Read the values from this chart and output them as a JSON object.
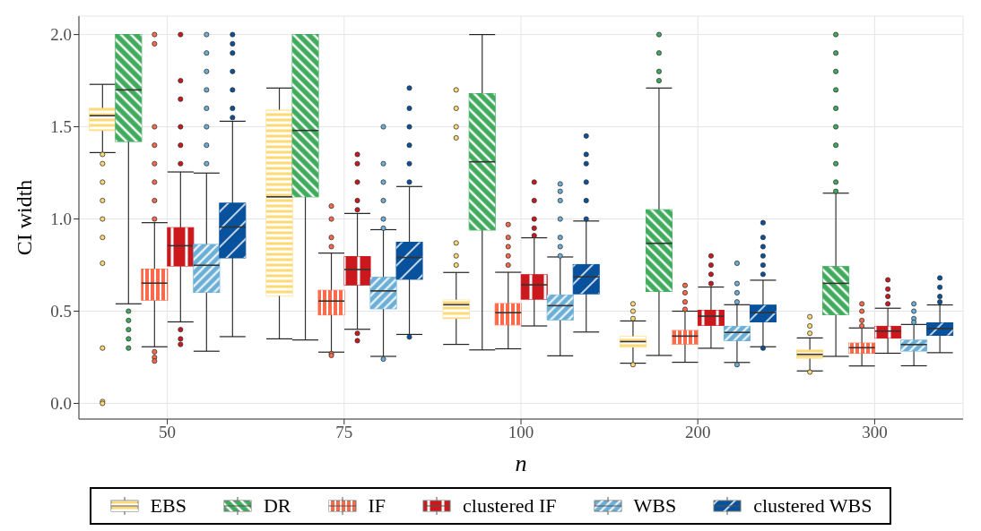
{
  "chart_data": {
    "type": "box",
    "xlabel": "n",
    "ylabel": "CI width",
    "categories": [
      "50",
      "75",
      "100",
      "200",
      "300"
    ],
    "ylim": [
      -0.085,
      2.1
    ],
    "yticks": [
      {
        "value": 0,
        "label": "0.0"
      },
      {
        "value": 0.5,
        "label": "0.5"
      },
      {
        "value": 1,
        "label": "1.0"
      },
      {
        "value": 1.5,
        "label": "1.5"
      },
      {
        "value": 2,
        "label": "2.0"
      }
    ],
    "grid": true,
    "legend": "bottom",
    "series": [
      {
        "name": "EBS",
        "color": "#fed976",
        "boxes": [
          {
            "low": 1.36,
            "q1": 1.48,
            "median": 1.56,
            "q3": 1.6,
            "high": 1.73,
            "outliers": [
              1.35,
              1.3,
              1.2,
              1.1,
              1.0,
              0.9,
              0.76,
              0.3,
              0.01,
              0.0
            ]
          },
          {
            "low": 0.35,
            "q1": 0.585,
            "median": 1.12,
            "q3": 1.59,
            "high": 1.71
          },
          {
            "low": 0.32,
            "q1": 0.46,
            "median": 0.535,
            "q3": 0.56,
            "high": 0.71,
            "outliers": [
              1.7,
              1.6,
              1.5,
              1.44,
              0.87,
              0.8,
              0.75
            ]
          },
          {
            "low": 0.218,
            "q1": 0.305,
            "median": 0.335,
            "q3": 0.362,
            "high": 0.447,
            "outliers": [
              0.54,
              0.5,
              0.46,
              0.21
            ]
          },
          {
            "low": 0.176,
            "q1": 0.245,
            "median": 0.266,
            "q3": 0.289,
            "high": 0.355,
            "outliers": [
              0.47,
              0.42,
              0.38,
              0.17
            ]
          }
        ]
      },
      {
        "name": "DR",
        "color": "#41ab5d",
        "boxes": [
          {
            "low": 0.54,
            "q1": 1.42,
            "median": 1.7,
            "q3": 2.0,
            "high": 2.0,
            "outliers": [
              0.5,
              0.45,
              0.4,
              0.35,
              0.3
            ]
          },
          {
            "low": 0.344,
            "q1": 1.12,
            "median": 1.48,
            "q3": 2.0,
            "high": 2.0
          },
          {
            "low": 0.29,
            "q1": 0.94,
            "median": 1.31,
            "q3": 1.68,
            "high": 2.0
          },
          {
            "low": 0.26,
            "q1": 0.607,
            "median": 0.868,
            "q3": 1.05,
            "high": 1.71,
            "outliers": [
              2.0,
              1.9,
              1.8,
              1.75
            ]
          },
          {
            "low": 0.255,
            "q1": 0.481,
            "median": 0.651,
            "q3": 0.742,
            "high": 1.14,
            "outliers": [
              2.0,
              1.9,
              1.8,
              1.7,
              1.6,
              1.5,
              1.4,
              1.3,
              1.2,
              1.15
            ]
          }
        ]
      },
      {
        "name": "IF",
        "color": "#fb6a4a",
        "boxes": [
          {
            "low": 0.307,
            "q1": 0.56,
            "median": 0.652,
            "q3": 0.728,
            "high": 0.98,
            "outliers": [
              2.0,
              1.95,
              1.5,
              1.4,
              1.3,
              1.2,
              1.1,
              1.0,
              0.28,
              0.25,
              0.23
            ]
          },
          {
            "low": 0.278,
            "q1": 0.48,
            "median": 0.555,
            "q3": 0.613,
            "high": 0.815,
            "outliers": [
              1.07,
              1.0,
              0.9,
              0.85,
              0.27,
              0.26
            ]
          },
          {
            "low": 0.296,
            "q1": 0.426,
            "median": 0.492,
            "q3": 0.541,
            "high": 0.711,
            "outliers": [
              0.97,
              0.9,
              0.85,
              0.8,
              0.75
            ]
          },
          {
            "low": 0.223,
            "q1": 0.322,
            "median": 0.365,
            "q3": 0.395,
            "high": 0.5,
            "outliers": [
              0.64,
              0.6,
              0.55,
              0.51
            ]
          },
          {
            "low": 0.203,
            "q1": 0.272,
            "median": 0.302,
            "q3": 0.327,
            "high": 0.409,
            "outliers": [
              0.54,
              0.5,
              0.45,
              0.42
            ]
          }
        ]
      },
      {
        "name": "clustered IF",
        "color": "#cb181d",
        "boxes": [
          {
            "low": 0.442,
            "q1": 0.745,
            "median": 0.855,
            "q3": 0.953,
            "high": 1.255,
            "outliers": [
              2.0,
              1.75,
              1.65,
              1.5,
              1.4,
              1.3,
              0.4,
              0.35,
              0.32
            ]
          },
          {
            "low": 0.402,
            "q1": 0.642,
            "median": 0.726,
            "q3": 0.796,
            "high": 1.03,
            "outliers": [
              1.35,
              1.3,
              1.2,
              1.1,
              1.05,
              0.38,
              0.34
            ]
          },
          {
            "low": 0.42,
            "q1": 0.565,
            "median": 0.643,
            "q3": 0.698,
            "high": 0.898,
            "outliers": [
              1.2,
              1.1,
              1.0,
              0.95,
              0.91
            ]
          },
          {
            "low": 0.299,
            "q1": 0.423,
            "median": 0.473,
            "q3": 0.505,
            "high": 0.631,
            "outliers": [
              0.8,
              0.75,
              0.7,
              0.65
            ]
          },
          {
            "low": 0.272,
            "q1": 0.354,
            "median": 0.392,
            "q3": 0.418,
            "high": 0.516,
            "outliers": [
              0.67,
              0.62,
              0.58,
              0.54
            ]
          }
        ]
      },
      {
        "name": "WBS",
        "color": "#6baed6",
        "boxes": [
          {
            "low": 0.283,
            "q1": 0.602,
            "median": 0.749,
            "q3": 0.862,
            "high": 1.249,
            "outliers": [
              2.0,
              1.9,
              1.8,
              1.7,
              1.6,
              1.5,
              1.4,
              1.3
            ]
          },
          {
            "low": 0.255,
            "q1": 0.513,
            "median": 0.61,
            "q3": 0.684,
            "high": 0.942,
            "outliers": [
              1.5,
              1.3,
              1.2,
              1.1,
              1.0,
              0.95,
              0.24
            ]
          },
          {
            "low": 0.258,
            "q1": 0.453,
            "median": 0.53,
            "q3": 0.588,
            "high": 0.794,
            "outliers": [
              1.19,
              1.15,
              1.1,
              1.0,
              0.9,
              0.85,
              0.8
            ]
          },
          {
            "low": 0.222,
            "q1": 0.34,
            "median": 0.385,
            "q3": 0.418,
            "high": 0.535,
            "outliers": [
              0.76,
              0.65,
              0.6,
              0.55,
              0.21
            ]
          },
          {
            "low": 0.204,
            "q1": 0.284,
            "median": 0.319,
            "q3": 0.343,
            "high": 0.428,
            "outliers": [
              0.54,
              0.5,
              0.46,
              0.44
            ]
          }
        ]
      },
      {
        "name": "clustered WBS",
        "color": "#08519c",
        "boxes": [
          {
            "low": 0.362,
            "q1": 0.789,
            "median": 0.956,
            "q3": 1.086,
            "high": 1.53,
            "outliers": [
              2.0,
              1.95,
              1.9,
              1.8,
              1.7,
              1.6,
              1.55
            ]
          },
          {
            "low": 0.374,
            "q1": 0.673,
            "median": 0.791,
            "q3": 0.874,
            "high": 1.176,
            "outliers": [
              1.71,
              1.6,
              1.5,
              1.4,
              1.3,
              1.2,
              0.36
            ]
          },
          {
            "low": 0.387,
            "q1": 0.594,
            "median": 0.686,
            "q3": 0.753,
            "high": 0.989,
            "outliers": [
              1.45,
              1.35,
              1.3,
              1.2,
              1.1,
              1.0
            ]
          },
          {
            "low": 0.307,
            "q1": 0.442,
            "median": 0.492,
            "q3": 0.533,
            "high": 0.668,
            "outliers": [
              0.98,
              0.9,
              0.85,
              0.8,
              0.75,
              0.7,
              0.3
            ]
          },
          {
            "low": 0.275,
            "q1": 0.369,
            "median": 0.406,
            "q3": 0.437,
            "high": 0.534,
            "outliers": [
              0.68,
              0.63,
              0.58,
              0.55
            ]
          }
        ]
      }
    ]
  }
}
